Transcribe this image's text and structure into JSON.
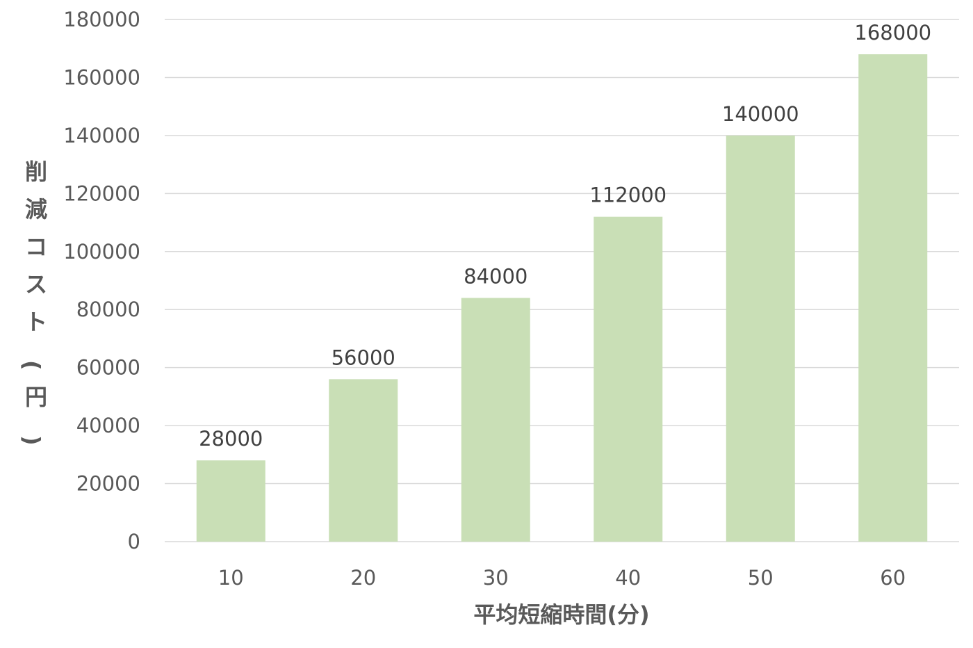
{
  "chart_data": {
    "type": "bar",
    "categories": [
      "10",
      "20",
      "30",
      "40",
      "50",
      "60"
    ],
    "values": [
      28000,
      56000,
      84000,
      112000,
      140000,
      168000
    ],
    "data_labels": [
      "28000",
      "56000",
      "84000",
      "112000",
      "140000",
      "168000"
    ],
    "xlabel": "平均短縮時間(分)",
    "ylabel": "削減コスト(円)",
    "ylim": [
      0,
      180000
    ],
    "yticks": [
      "0",
      "20000",
      "40000",
      "60000",
      "80000",
      "100000",
      "120000",
      "140000",
      "160000",
      "180000"
    ],
    "grid": true,
    "legend": "none",
    "bar_color": "#c9dfb6"
  }
}
